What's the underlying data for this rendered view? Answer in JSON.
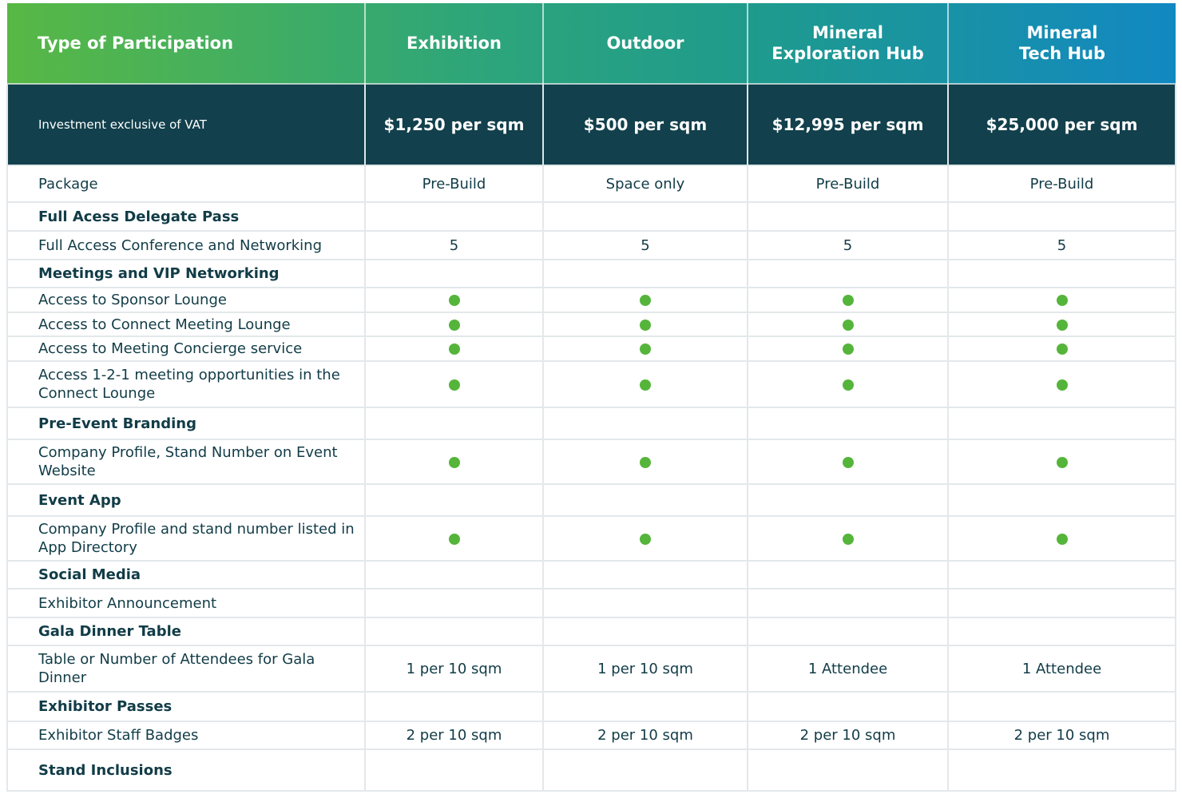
{
  "header": {
    "row_label": "Type of Participation",
    "columns": [
      "Exhibition",
      "Outdoor",
      "Mineral\nExploration Hub",
      "Mineral\nTech Hub"
    ]
  },
  "price_row": {
    "label": "Investment exclusive of VAT",
    "values": [
      "$1,250 per sqm",
      "$500 per sqm",
      "$12,995 per sqm",
      "$25,000 per sqm"
    ]
  },
  "rows": [
    {
      "label": "Package",
      "section": false,
      "values": [
        "Pre-Build",
        "Space only",
        "Pre-Build",
        "Pre-Build"
      ]
    },
    {
      "label": "Full Acess Delegate Pass",
      "section": true,
      "values": [
        "",
        "",
        "",
        ""
      ]
    },
    {
      "label": "Full Access Conference and Networking",
      "section": false,
      "values": [
        "5",
        "5",
        "5",
        "5"
      ]
    },
    {
      "label": "Meetings and VIP Networking",
      "section": true,
      "values": [
        "",
        "",
        "",
        ""
      ]
    },
    {
      "label": "Access to Sponsor Lounge",
      "section": false,
      "values": [
        "dot",
        "dot",
        "dot",
        "dot"
      ]
    },
    {
      "label": "Access to Connect Meeting Lounge",
      "section": false,
      "values": [
        "dot",
        "dot",
        "dot",
        "dot"
      ]
    },
    {
      "label": "Access to Meeting Concierge service",
      "section": false,
      "values": [
        "dot",
        "dot",
        "dot",
        "dot"
      ]
    },
    {
      "label": "Access 1-2-1 meeting opportunities in the Connect Lounge",
      "section": false,
      "values": [
        "dot",
        "dot",
        "dot",
        "dot"
      ]
    },
    {
      "label": "Pre-Event Branding",
      "section": true,
      "values": [
        "",
        "",
        "",
        ""
      ]
    },
    {
      "label": "Company Profile, Stand Number on Event Website",
      "section": false,
      "values": [
        "dot",
        "dot",
        "dot",
        "dot"
      ]
    },
    {
      "label": "Event App",
      "section": true,
      "values": [
        "",
        "",
        "",
        ""
      ]
    },
    {
      "label": "Company Profile and stand number listed in App Directory",
      "section": false,
      "values": [
        "dot",
        "dot",
        "dot",
        "dot"
      ]
    },
    {
      "label": "Social Media",
      "section": true,
      "values": [
        "",
        "",
        "",
        ""
      ]
    },
    {
      "label": "Exhibitor Announcement",
      "section": false,
      "values": [
        "",
        "",
        "",
        ""
      ]
    },
    {
      "label": "Gala Dinner Table",
      "section": true,
      "values": [
        "",
        "",
        "",
        ""
      ]
    },
    {
      "label": "Table or Number of Attendees for Gala Dinner",
      "section": false,
      "values": [
        "1 per 10 sqm",
        "1 per 10 sqm",
        "1 Attendee",
        "1 Attendee"
      ]
    },
    {
      "label": "Exhibitor Passes",
      "section": true,
      "values": [
        "",
        "",
        "",
        ""
      ]
    },
    {
      "label": "Exhibitor Staff Badges",
      "section": false,
      "values": [
        "2 per 10 sqm",
        "2 per 10 sqm",
        "2 per 10 sqm",
        "2 per 10 sqm"
      ]
    },
    {
      "label": "Stand Inclusions",
      "section": true,
      "values": [
        "",
        "",
        "",
        ""
      ]
    }
  ],
  "colors": {
    "accent_green": "#55b53b",
    "dark_teal": "#12404c"
  }
}
